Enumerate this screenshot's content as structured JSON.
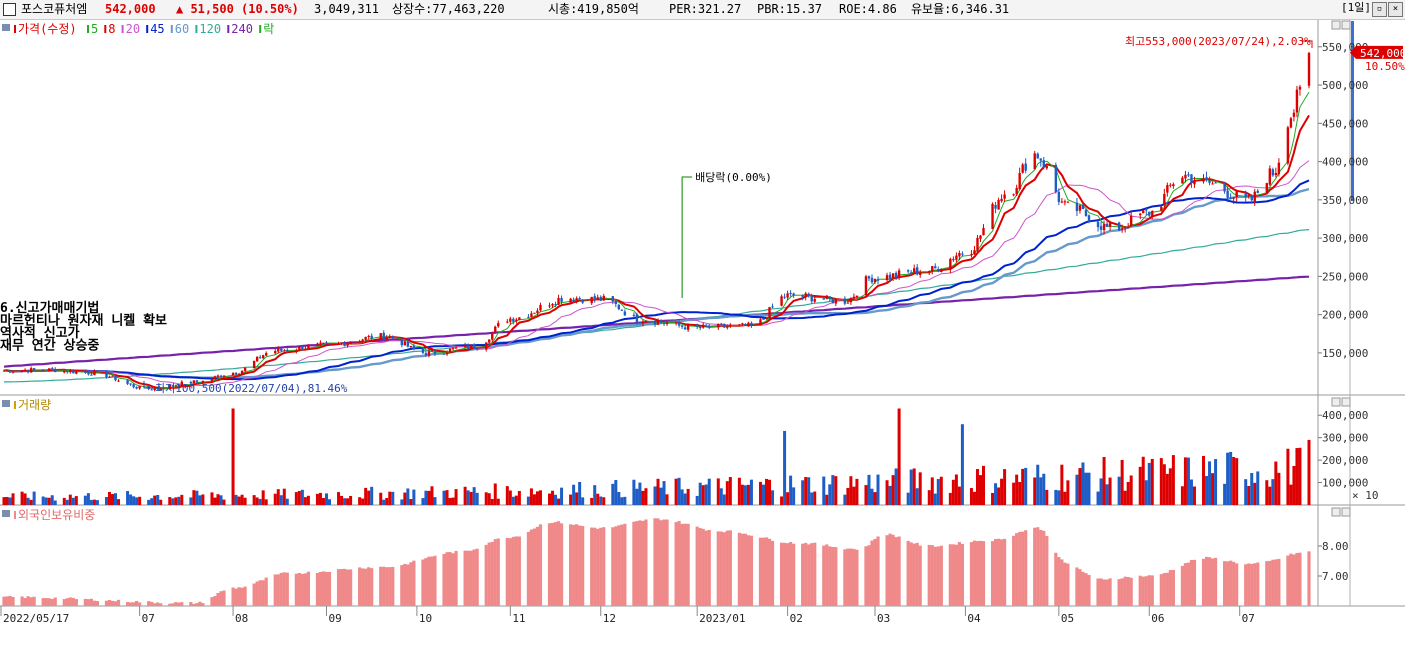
{
  "header": {
    "stock_name": "포스코퓨처엠",
    "price": "542,000",
    "change": "▲ 51,500 (10.50%)",
    "volume": "3,049,311",
    "listed_shares": "상장수:77,463,220",
    "market_cap": "시총:419,850억",
    "per": "PER:321.27",
    "pbr": "PBR:15.37",
    "roe": "ROE:4.86",
    "float_shares": "유보율:6,346.31",
    "period": "[1일]"
  },
  "colors": {
    "up": "#dd0000",
    "down": "#1e5cc6",
    "ma5": "#22aa22",
    "ma8": "#dd0000",
    "ma20": "#cc55cc",
    "ma45": "#0022cc",
    "ma60": "#6699cc",
    "ma120": "#33aa99",
    "ma240": "#7722aa",
    "foreign": "#f08a8a"
  },
  "chart_data": [
    {
      "type": "line",
      "title": "가격(수정)",
      "legend": [
        {
          "label": "가격(수정)",
          "color": "#dd0000"
        },
        {
          "label": "5",
          "color": "#22aa22"
        },
        {
          "label": "8",
          "color": "#dd0000"
        },
        {
          "label": "20",
          "color": "#cc55cc"
        },
        {
          "label": "45",
          "color": "#0022cc"
        },
        {
          "label": "60",
          "color": "#6699cc"
        },
        {
          "label": "120",
          "color": "#33aa99"
        },
        {
          "label": "240",
          "color": "#7722aa"
        },
        {
          "label": "락",
          "color": "#22aa22"
        }
      ],
      "x_labels": [
        "2022/05/17",
        "07",
        "08",
        "09",
        "10",
        "11",
        "12",
        "2023/01",
        "02",
        "03",
        "04",
        "05",
        "06",
        "07"
      ],
      "y_ticks": [
        150000,
        200000,
        250000,
        300000,
        350000,
        400000,
        450000,
        500000,
        550000
      ],
      "y_tick_labels": [
        "150,000",
        "200,000",
        "250,000",
        "300,000",
        "350,000",
        "400,000",
        "450,000",
        "500,000",
        "550,000"
      ],
      "ylim": [
        95000,
        585000
      ],
      "close_points": [
        [
          "2022-05-17",
          127000
        ],
        [
          "2022-06-01",
          128000
        ],
        [
          "2022-06-15",
          124000
        ],
        [
          "2022-07-04",
          103000
        ],
        [
          "2022-07-20",
          112000
        ],
        [
          "2022-08-01",
          124000
        ],
        [
          "2022-08-15",
          153000
        ],
        [
          "2022-09-01",
          160000
        ],
        [
          "2022-09-20",
          172000
        ],
        [
          "2022-10-04",
          150000
        ],
        [
          "2022-10-20",
          158000
        ],
        [
          "2022-11-01",
          195000
        ],
        [
          "2022-11-20",
          222000
        ],
        [
          "2022-12-01",
          220000
        ],
        [
          "2022-12-15",
          193000
        ],
        [
          "2023-01-02",
          183000
        ],
        [
          "2023-01-20",
          185000
        ],
        [
          "2023-02-01",
          225000
        ],
        [
          "2023-02-20",
          218000
        ],
        [
          "2023-03-01",
          248000
        ],
        [
          "2023-03-20",
          258000
        ],
        [
          "2023-04-01",
          282000
        ],
        [
          "2023-04-15",
          360000
        ],
        [
          "2023-04-24",
          410000
        ],
        [
          "2023-05-05",
          340000
        ],
        [
          "2023-05-20",
          312000
        ],
        [
          "2023-06-01",
          333000
        ],
        [
          "2023-06-12",
          382000
        ],
        [
          "2023-06-20",
          372000
        ],
        [
          "2023-07-04",
          349000
        ],
        [
          "2023-07-12",
          385000
        ],
        [
          "2023-07-18",
          460000
        ],
        [
          "2023-07-21",
          490000
        ],
        [
          "2023-07-24",
          542000
        ]
      ],
      "annotations": {
        "high": "최고553,000(2023/07/24),2.03%",
        "low": "최저100,500(2022/07/04),81.46%",
        "ex_dividend": "배당락(0.00%)",
        "current_price": "542,000",
        "current_change": "10.50%",
        "notes": [
          "6.신고가매매기법",
          "마르헌티나 원자재 니켈 확보",
          "역사적 신고가",
          "재무 연간 상승중"
        ]
      }
    },
    {
      "type": "bar",
      "title": "거래량",
      "y_ticks": [
        100000,
        200000,
        300000,
        400000
      ],
      "y_tick_labels": [
        "100,000",
        "200,000",
        "300,000",
        "400,000"
      ],
      "unit_label": "× 10",
      "ylim": [
        0,
        450000
      ]
    },
    {
      "type": "bar",
      "title": "외국인보유비중",
      "y_ticks": [
        7.0,
        8.0
      ],
      "y_tick_labels": [
        "7.00",
        "8.00"
      ],
      "ylim": [
        6.0,
        9.0
      ],
      "values_key_points": [
        [
          "2022-05-17",
          6.3
        ],
        [
          "2022-07-20",
          6.1
        ],
        [
          "2022-08-01",
          6.6
        ],
        [
          "2022-08-20",
          7.1
        ],
        [
          "2022-09-20",
          7.3
        ],
        [
          "2022-10-15",
          7.8
        ],
        [
          "2022-11-01",
          8.3
        ],
        [
          "2022-11-15",
          8.8
        ],
        [
          "2022-12-01",
          8.6
        ],
        [
          "2022-12-20",
          8.9
        ],
        [
          "2023-01-10",
          8.5
        ],
        [
          "2023-02-05",
          8.1
        ],
        [
          "2023-02-25",
          7.9
        ],
        [
          "2023-03-05",
          8.4
        ],
        [
          "2023-03-20",
          8.0
        ],
        [
          "2023-04-10",
          8.2
        ],
        [
          "2023-04-25",
          8.6
        ],
        [
          "2023-05-05",
          7.4
        ],
        [
          "2023-05-15",
          6.9
        ],
        [
          "2023-06-01",
          7.0
        ],
        [
          "2023-06-20",
          7.6
        ],
        [
          "2023-07-05",
          7.4
        ],
        [
          "2023-07-24",
          7.8
        ]
      ]
    }
  ]
}
